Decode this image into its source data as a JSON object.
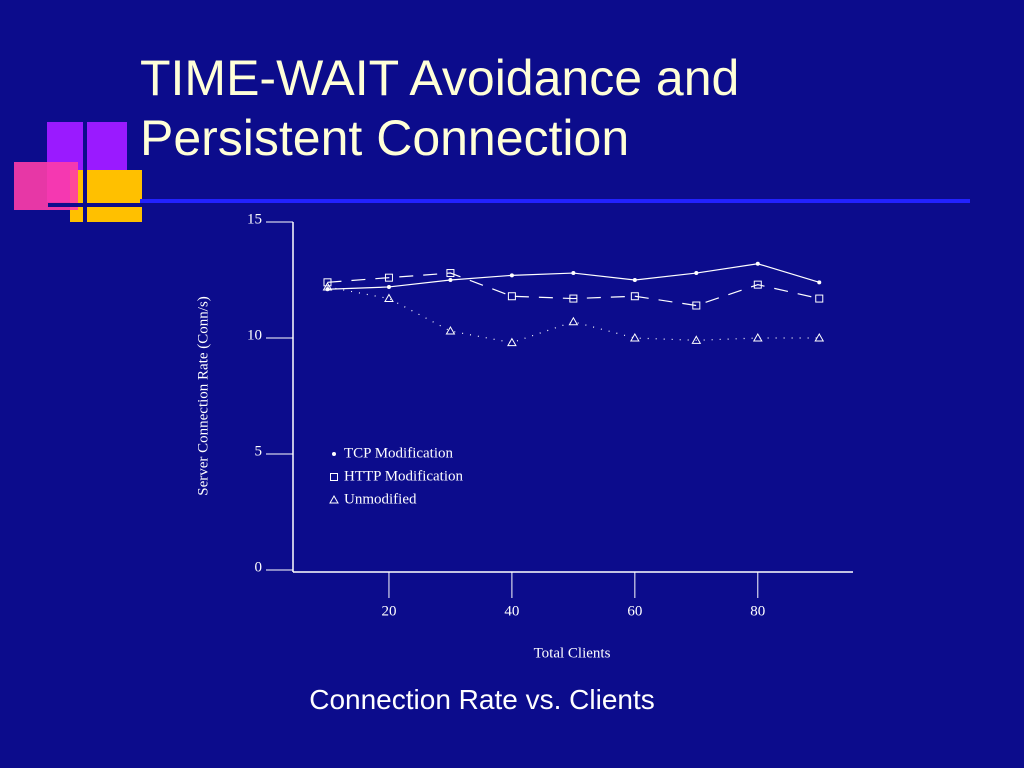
{
  "slide": {
    "title": "TIME-WAIT Avoidance and Persistent Connection",
    "caption": "Connection Rate vs. Clients"
  },
  "chart_data": {
    "type": "line",
    "x_label": "Total Clients",
    "y_label": "Server Connection Rate (Conn/s)",
    "x": [
      10,
      20,
      30,
      40,
      50,
      60,
      70,
      80,
      90
    ],
    "series": [
      {
        "name": "TCP Modification",
        "color": "#ffffff",
        "marker": "dot",
        "dash": "solid",
        "values": [
          12.1,
          12.2,
          12.5,
          12.7,
          12.8,
          12.5,
          12.8,
          13.2,
          12.4
        ]
      },
      {
        "name": "HTTP Modification",
        "color": "#ffffff",
        "marker": "square",
        "dash": "dashed",
        "values": [
          12.4,
          12.6,
          12.8,
          11.8,
          11.7,
          11.8,
          11.4,
          12.3,
          11.7
        ]
      },
      {
        "name": "Unmodified",
        "color": "#ffffff",
        "marker": "triangle",
        "dash": "dotted",
        "values": [
          12.2,
          11.7,
          10.3,
          9.8,
          10.7,
          10.0,
          9.9,
          10.0,
          10.0
        ]
      }
    ],
    "xlim": [
      4,
      95
    ],
    "xticks": [
      20,
      40,
      60,
      80
    ],
    "ylim": [
      0,
      15
    ],
    "yticks": [
      0,
      5,
      10,
      15
    ],
    "legend": "center left"
  }
}
